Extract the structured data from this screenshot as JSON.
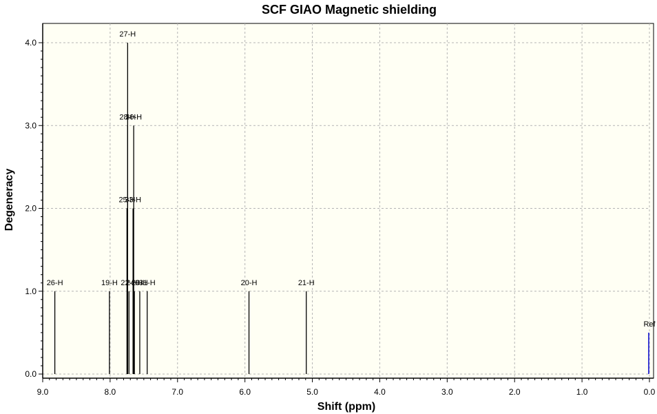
{
  "chart_data": {
    "type": "bar",
    "title": "SCF GIAO Magnetic shielding",
    "xlabel": "Shift (ppm)",
    "ylabel": "Degeneracy",
    "xlim": [
      9.0,
      0.0
    ],
    "ylim": [
      0.0,
      4.0
    ],
    "x_reversed": true,
    "grid": true,
    "xticks": [
      "9.0",
      "8.0",
      "7.0",
      "6.0",
      "5.0",
      "4.0",
      "3.0",
      "2.0",
      "1.0",
      "0.0"
    ],
    "yticks": [
      "0.0",
      "1.0",
      "2.0",
      "3.0",
      "4.0"
    ],
    "colors": {
      "plot_bg": "#fffff4",
      "peak": "#000000",
      "ref": "#0000cc",
      "grid": "#b4b4b4"
    },
    "peaks": [
      {
        "label": "26-H",
        "x": 8.82,
        "y": 1
      },
      {
        "label": "19-H",
        "x": 8.01,
        "y": 1
      },
      {
        "label": "27-H",
        "x": 7.74,
        "y": 4
      },
      {
        "label": "28-H",
        "x": 7.74,
        "y": 3
      },
      {
        "label": "25-H",
        "x": 7.75,
        "y": 2
      },
      {
        "label": "22-H",
        "x": 7.72,
        "y": 1
      },
      {
        "label": "30-H",
        "x": 7.65,
        "y": 3
      },
      {
        "label": "33-H",
        "x": 7.66,
        "y": 2
      },
      {
        "label": "24-H",
        "x": 7.64,
        "y": 1
      },
      {
        "label": "29-H",
        "x": 7.56,
        "y": 1
      },
      {
        "label": "31-H",
        "x": 7.45,
        "y": 1
      },
      {
        "label": "20-H",
        "x": 5.94,
        "y": 1
      },
      {
        "label": "21-H",
        "x": 5.09,
        "y": 1
      }
    ],
    "reference": {
      "label": "Ref",
      "x": 0.0,
      "y": 0.5
    }
  }
}
